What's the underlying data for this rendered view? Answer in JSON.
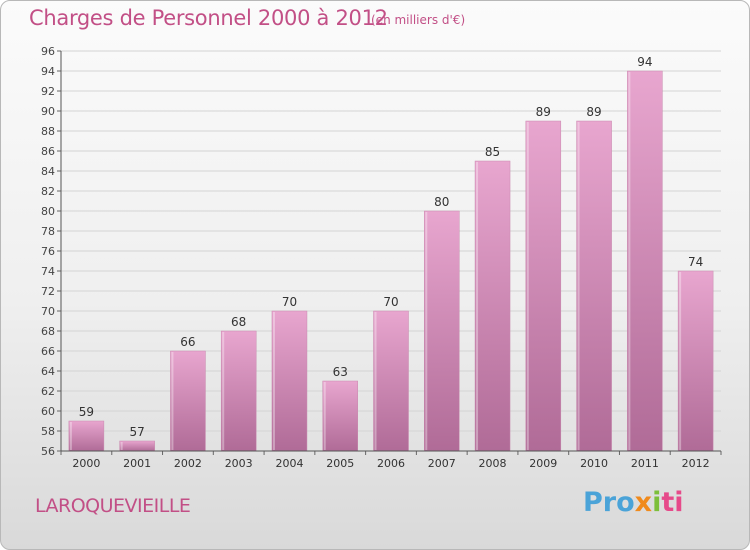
{
  "header": {
    "title": "Charges de Personnel 2000 à 2012",
    "subtitle": "(en milliers d'€)"
  },
  "footer": {
    "commune": "LAROQUEVIEILLE",
    "logo_parts": [
      "Pro",
      "x",
      "i",
      "ti"
    ]
  },
  "colors": {
    "title": "#c24f86",
    "bar_top": "#e8a6cf",
    "bar_bottom": "#b06b97",
    "logo_blue": "#4aa3d8",
    "logo_orange": "#f08a1c",
    "logo_green": "#7cbf3a",
    "logo_pink": "#e64a8a"
  },
  "chart_data": {
    "type": "bar",
    "title": "Charges de Personnel 2000 à 2012",
    "subtitle": "(en milliers d'€)",
    "categories": [
      "2000",
      "2001",
      "2002",
      "2003",
      "2004",
      "2005",
      "2006",
      "2007",
      "2008",
      "2009",
      "2010",
      "2011",
      "2012"
    ],
    "values": [
      59,
      57,
      66,
      68,
      70,
      63,
      70,
      80,
      85,
      89,
      89,
      94,
      74
    ],
    "ylim": [
      56,
      96
    ],
    "yticks": [
      56,
      58,
      60,
      62,
      64,
      66,
      68,
      70,
      72,
      74,
      76,
      78,
      80,
      82,
      84,
      86,
      88,
      90,
      92,
      94,
      96
    ],
    "grid": true,
    "data_labels": true
  }
}
